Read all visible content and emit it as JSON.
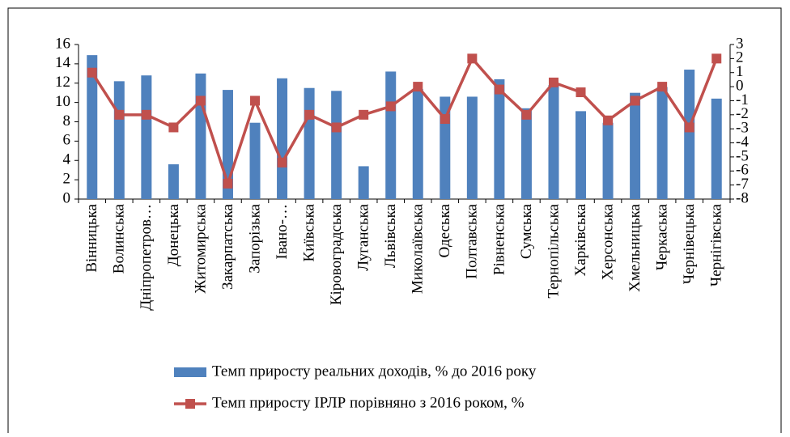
{
  "chart_data": {
    "type": "bar-line",
    "categories": [
      "Вінницька",
      "Волинська",
      "Дніпропетров…",
      "Донецька",
      "Житомирська",
      "Закарпатська",
      "Запорізька",
      "Івано-…",
      "Київська",
      "Кіровоградська",
      "Луганська",
      "Львівська",
      "Миколаївська",
      "Одеська",
      "Полтавська",
      "Рівненська",
      "Сумська",
      "Тернопільська",
      "Харківська",
      "Херсонська",
      "Хмельницька",
      "Черкаська",
      "Чернівецька",
      "Чернігівська"
    ],
    "series": [
      {
        "name": "Темп приросту реальних доходів, % до 2016 року",
        "type": "bar",
        "color": "#4f81bd",
        "values": [
          14.9,
          12.2,
          12.8,
          3.6,
          13.0,
          11.3,
          7.9,
          12.5,
          11.5,
          11.2,
          3.4,
          13.2,
          11.4,
          10.6,
          10.6,
          12.4,
          9.4,
          11.8,
          9.1,
          7.9,
          11.0,
          11.6,
          13.4,
          10.4
        ]
      },
      {
        "name": "Темп приросту ІРЛР порівняно з 2016 роком, %",
        "type": "line",
        "axis": "y2",
        "color": "#c0504d",
        "values": [
          1.0,
          -2.0,
          -2.0,
          -2.9,
          -1.0,
          -6.9,
          -1.0,
          -5.4,
          -2.0,
          -2.9,
          -2.0,
          -1.4,
          0.0,
          -2.3,
          2.0,
          -0.2,
          -2.0,
          0.3,
          -0.4,
          -2.4,
          -1.0,
          0.0,
          -2.9,
          2.0
        ]
      }
    ],
    "ylim": [
      0,
      16
    ],
    "yticks": [
      0,
      2,
      4,
      6,
      8,
      10,
      12,
      14,
      16
    ],
    "y2lim": [
      -8,
      3
    ],
    "y2ticks": [
      -8,
      -7,
      -6,
      -5,
      -4,
      -3,
      -2,
      -1,
      0,
      1,
      2,
      3
    ],
    "grid": false,
    "legend": "bottom"
  }
}
